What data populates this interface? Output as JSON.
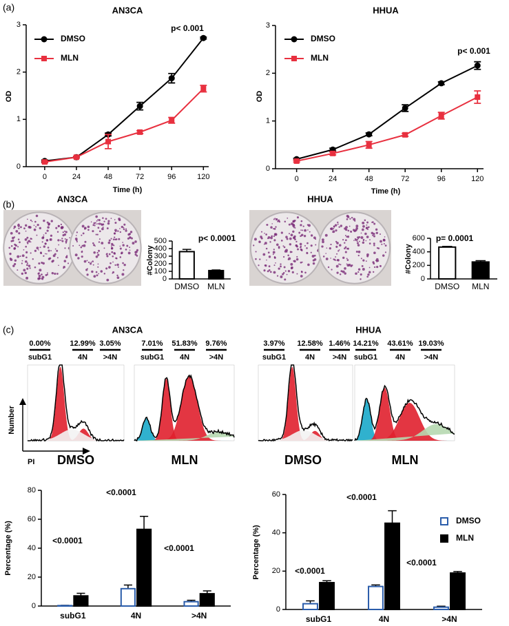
{
  "panels": [
    "(a)",
    "(b)",
    "(c)"
  ],
  "flow_axes": {
    "y": "Number",
    "x": "PI"
  },
  "flow": [
    {
      "title": "AN3CA",
      "samples": [
        {
          "name": "DMSO",
          "gates": [
            {
              "label": "subG1",
              "percent": "0.00%"
            },
            {
              "label": "4N",
              "percent": "12.99%"
            },
            {
              "label": ">4N",
              "percent": "3.05%"
            }
          ]
        },
        {
          "name": "MLN",
          "gates": [
            {
              "label": "subG1",
              "percent": "7.01%"
            },
            {
              "label": "4N",
              "percent": "51.83%"
            },
            {
              "label": ">4N",
              "percent": "9.76%"
            }
          ]
        }
      ]
    },
    {
      "title": "HHUA",
      "samples": [
        {
          "name": "DMSO",
          "gates": [
            {
              "label": "subG1",
              "percent": "3.97%"
            },
            {
              "label": "4N",
              "percent": "12.58%"
            },
            {
              "label": ">4N",
              "percent": "1.46%"
            }
          ]
        },
        {
          "name": "MLN",
          "gates": [
            {
              "label": "subG1",
              "percent": "14.21%"
            },
            {
              "label": "4N",
              "percent": "43.61%"
            },
            {
              "label": ">4N",
              "percent": "19.03%"
            }
          ]
        }
      ]
    }
  ],
  "chart_data": [
    {
      "type": "line",
      "title": "AN3CA",
      "x_label": "Time (h)",
      "y_label": "OD",
      "annotations": [
        "p< 0.001"
      ],
      "x": [
        0,
        24,
        48,
        72,
        96,
        120
      ],
      "xlim": [
        -14,
        124
      ],
      "xticks": [
        0,
        24,
        48,
        72,
        96,
        120
      ],
      "ylim": [
        0,
        3
      ],
      "yticks": [
        0,
        1,
        2,
        3
      ],
      "series": [
        {
          "name": "DMSO",
          "color": "#000000",
          "marker": "circle",
          "values": [
            0.12,
            0.2,
            0.68,
            1.28,
            1.87,
            2.72
          ],
          "errors": [
            0.02,
            0.02,
            0.03,
            0.08,
            0.1,
            0.02
          ]
        },
        {
          "name": "MLN",
          "color": "#e8303f",
          "marker": "square",
          "values": [
            0.1,
            0.2,
            0.53,
            0.73,
            0.98,
            1.65
          ],
          "errors": [
            0.02,
            0.02,
            0.15,
            0.03,
            0.06,
            0.07
          ]
        }
      ]
    },
    {
      "type": "line",
      "title": "HHUA",
      "x_label": "Time (h)",
      "y_label": "OD",
      "annotations": [
        "p< 0.001"
      ],
      "x": [
        0,
        24,
        48,
        72,
        96,
        120
      ],
      "xlim": [
        -14,
        124
      ],
      "xticks": [
        0,
        24,
        48,
        72,
        96,
        120
      ],
      "ylim": [
        0,
        3
      ],
      "yticks": [
        0,
        1,
        2,
        3
      ],
      "series": [
        {
          "name": "DMSO",
          "color": "#000000",
          "marker": "circle",
          "values": [
            0.2,
            0.4,
            0.72,
            1.27,
            1.79,
            2.16
          ],
          "errors": [
            0.02,
            0.03,
            0.03,
            0.07,
            0.03,
            0.08
          ]
        },
        {
          "name": "MLN",
          "color": "#e8303f",
          "marker": "square",
          "values": [
            0.16,
            0.32,
            0.5,
            0.71,
            1.11,
            1.5
          ],
          "errors": [
            0.02,
            0.03,
            0.07,
            0.03,
            0.07,
            0.13
          ]
        }
      ]
    },
    {
      "type": "bar",
      "title": "AN3CA",
      "y_label": "#Colony",
      "annotations": [
        "p< 0.0001"
      ],
      "categories": [
        "DMSO",
        "MLN"
      ],
      "values": [
        360,
        110
      ],
      "errors": [
        30,
        8
      ],
      "colors": [
        "#ffffff",
        "#000000"
      ],
      "ylim": [
        0,
        500
      ],
      "yticks": [
        0,
        100,
        200,
        300,
        400,
        500
      ]
    },
    {
      "type": "bar",
      "title": "HHUA",
      "y_label": "#Colony",
      "annotations": [
        "p= 0.0001"
      ],
      "categories": [
        "DMSO",
        "MLN"
      ],
      "values": [
        470,
        250
      ],
      "errors": [
        10,
        20
      ],
      "colors": [
        "#ffffff",
        "#000000"
      ],
      "ylim": [
        0,
        600
      ],
      "yticks": [
        0,
        200,
        400,
        600
      ]
    },
    {
      "type": "bar",
      "y_label": "Percentage (%)",
      "annotations": [
        "<0.0001",
        "<0.0001",
        "<0.0001"
      ],
      "categories": [
        "subG1",
        "4N",
        ">4N"
      ],
      "ylim": [
        0,
        80
      ],
      "yticks": [
        0,
        20,
        40,
        60,
        80
      ],
      "series": [
        {
          "name": "DMSO",
          "color": "#2a5caa",
          "fill": "#ffffff",
          "values": [
            0.3,
            12,
            3
          ],
          "errors": [
            0.2,
            2.5,
            1
          ]
        },
        {
          "name": "MLN",
          "color": "#000000",
          "fill": "#000000",
          "values": [
            7,
            53,
            8.5
          ],
          "errors": [
            1.8,
            9,
            2
          ]
        }
      ]
    },
    {
      "type": "bar",
      "y_label": "Percentage (%)",
      "annotations": [
        "<0.0001",
        "<0.0001",
        "<0.0001"
      ],
      "legend": "upper right",
      "categories": [
        "subG1",
        "4N",
        ">4N"
      ],
      "ylim": [
        0,
        60
      ],
      "yticks": [
        0,
        20,
        40,
        60
      ],
      "series": [
        {
          "name": "DMSO",
          "color": "#2a5caa",
          "fill": "#ffffff",
          "values": [
            3,
            12,
            1.2
          ],
          "errors": [
            1.5,
            0.8,
            0.5
          ]
        },
        {
          "name": "MLN",
          "color": "#000000",
          "fill": "#000000",
          "values": [
            14,
            45,
            19
          ],
          "errors": [
            1,
            6.5,
            0.8
          ]
        }
      ]
    }
  ]
}
